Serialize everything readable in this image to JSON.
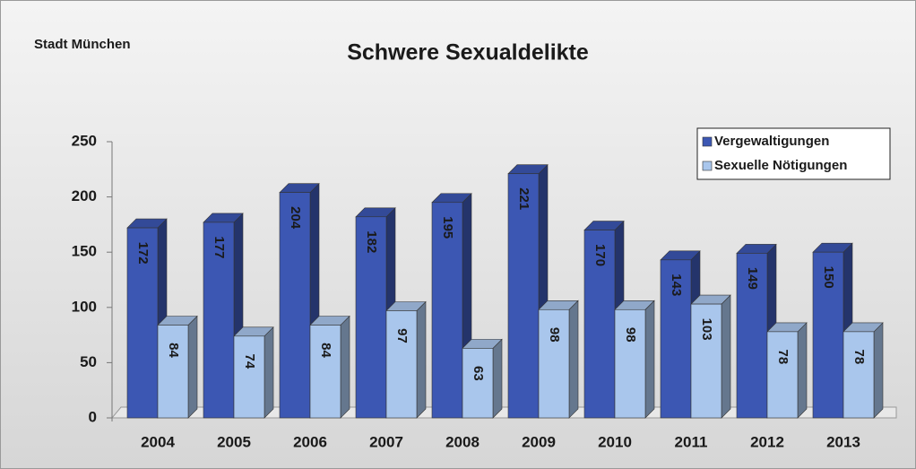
{
  "chart_data": {
    "type": "bar",
    "title": "Schwere Sexualdelikte",
    "subtitle": "Stadt München",
    "categories": [
      "2004",
      "2005",
      "2006",
      "2007",
      "2008",
      "2009",
      "2010",
      "2011",
      "2012",
      "2013"
    ],
    "series": [
      {
        "name": "Vergewaltigungen",
        "color": "#3c57b3",
        "values": [
          172,
          177,
          204,
          182,
          195,
          221,
          170,
          143,
          149,
          150
        ]
      },
      {
        "name": "Sexuelle Nötigungen",
        "color": "#a9c6ec",
        "values": [
          84,
          74,
          84,
          97,
          63,
          98,
          98,
          103,
          78,
          78
        ]
      }
    ],
    "ylim": [
      0,
      250
    ],
    "yticks": [
      0,
      50,
      100,
      150,
      200,
      250
    ],
    "legend": "upper right"
  }
}
